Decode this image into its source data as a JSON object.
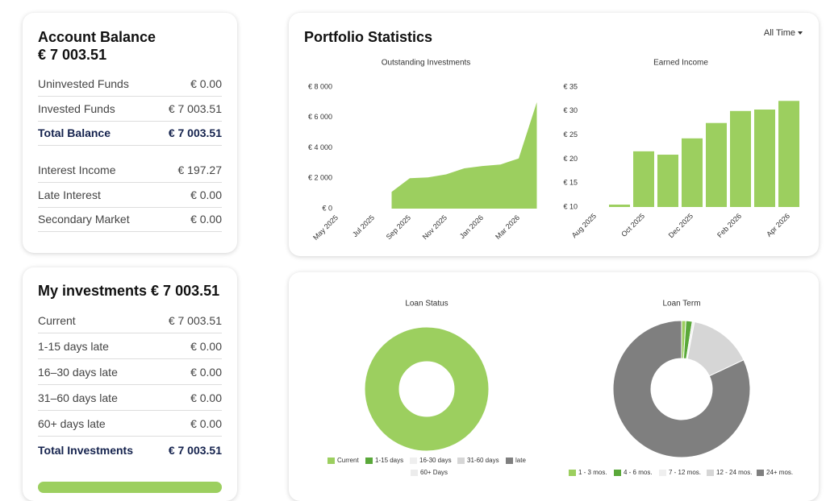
{
  "account_balance": {
    "title": "Account Balance",
    "total": "€ 7 003.51",
    "rows": [
      {
        "label": "Uninvested Funds",
        "value": "€ 0.00"
      },
      {
        "label": "Invested Funds",
        "value": "€ 7 003.51"
      },
      {
        "label": "Total Balance",
        "value": "€ 7 003.51"
      },
      {
        "label": "Interest Income",
        "value": "€ 197.27"
      },
      {
        "label": "Late Interest",
        "value": "€ 0.00"
      },
      {
        "label": "Secondary Market",
        "value": "€ 0.00"
      }
    ]
  },
  "my_investments": {
    "title": "My investments € 7 003.51",
    "rows": [
      {
        "label": "Current",
        "value": "€ 7 003.51"
      },
      {
        "label": "1-15 days late",
        "value": "€ 0.00"
      },
      {
        "label": "16–30 days late",
        "value": "€ 0.00"
      },
      {
        "label": "31–60 days late",
        "value": "€ 0.00"
      },
      {
        "label": "60+ days late",
        "value": "€ 0.00"
      },
      {
        "label": "Total Investments",
        "value": "€ 7 003.51"
      }
    ]
  },
  "portfolio": {
    "title": "Portfolio Statistics",
    "filter": "All Time"
  },
  "chart_data": [
    {
      "type": "area",
      "title": "Outstanding Investments",
      "categories": [
        "May 2025",
        null,
        "Jul 2025",
        null,
        "Sep 2025",
        null,
        "Nov 2025",
        null,
        "Jan 2026",
        null,
        "Mar 2026",
        null
      ],
      "values": [
        null,
        null,
        null,
        1100,
        2000,
        2050,
        2250,
        2650,
        2800,
        2900,
        3300,
        7000
      ],
      "color": "#9ccf5f",
      "ylim": [
        0,
        8000
      ],
      "yticks": [
        {
          "value": 0,
          "label": "€ 0"
        },
        {
          "value": 2000,
          "label": "€ 2 000"
        },
        {
          "value": 4000,
          "label": "€ 4 000"
        },
        {
          "value": 6000,
          "label": "€ 6 000"
        },
        {
          "value": 8000,
          "label": "€ 8 000"
        }
      ]
    },
    {
      "type": "bar",
      "title": "Earned Income",
      "categories": [
        "Aug 2025",
        null,
        "Oct 2025",
        null,
        "Dec 2025",
        null,
        "Feb 2026",
        null,
        "Apr 2026"
      ],
      "values": [
        null,
        10.5,
        21.6,
        20.9,
        24.3,
        27.5,
        30.0,
        30.3,
        32.1
      ],
      "color": "#9ccf5f",
      "ylim": [
        10,
        35
      ],
      "yticks": [
        {
          "value": 10,
          "label": "€ 10"
        },
        {
          "value": 15,
          "label": "€ 15"
        },
        {
          "value": 20,
          "label": "€ 20"
        },
        {
          "value": 25,
          "label": "€ 25"
        },
        {
          "value": 30,
          "label": "€ 30"
        },
        {
          "value": 35,
          "label": "€ 35"
        }
      ]
    },
    {
      "type": "doughnut",
      "title": "Loan Status",
      "categories": [
        "Current",
        "1-15 days",
        "16-30 days",
        "31-60 days",
        "late",
        "60+ Days"
      ],
      "values": [
        100,
        0,
        0,
        0,
        0,
        0
      ],
      "colors": [
        "#9ccf5f",
        "#5aa83a",
        "#efefef",
        "#d6d6d6",
        "#7f7f7f",
        "#ececec"
      ]
    },
    {
      "type": "doughnut",
      "title": "Loan Term",
      "categories": [
        "1 - 3 mos.",
        "4 - 6 mos.",
        "7 - 12 mos.",
        "12 - 24 mos.",
        "24+ mos."
      ],
      "values": [
        1,
        1.5,
        0.5,
        15,
        82
      ],
      "colors": [
        "#9ccf5f",
        "#5aa83a",
        "#efefef",
        "#d6d6d6",
        "#7f7f7f"
      ]
    }
  ]
}
